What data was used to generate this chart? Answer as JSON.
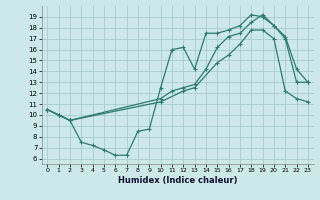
{
  "title": "",
  "xlabel": "Humidex (Indice chaleur)",
  "bg_color": "#cce8e8",
  "grid_color": "#aacccc",
  "line_color": "#2e7b6e",
  "ylim": [
    5.5,
    20.0
  ],
  "xlim": [
    -0.5,
    23.5
  ],
  "yticks": [
    6,
    7,
    8,
    9,
    10,
    11,
    12,
    13,
    14,
    15,
    16,
    17,
    18,
    19
  ],
  "xticks": [
    0,
    1,
    2,
    3,
    4,
    5,
    6,
    7,
    8,
    9,
    10,
    11,
    12,
    13,
    14,
    15,
    16,
    17,
    18,
    19,
    20,
    21,
    22,
    23
  ],
  "line1_x": [
    0,
    1,
    2,
    3,
    4,
    5,
    6,
    7,
    8,
    9,
    10,
    11,
    12,
    13,
    14,
    15,
    16,
    17,
    18,
    19,
    20,
    21,
    22,
    23
  ],
  "line1_y": [
    10.5,
    10.0,
    9.5,
    7.5,
    7.2,
    6.8,
    6.3,
    6.3,
    8.5,
    8.7,
    12.5,
    16.0,
    16.2,
    14.2,
    17.5,
    17.5,
    17.8,
    18.2,
    19.2,
    19.0,
    18.2,
    17.0,
    13.0,
    13.0
  ],
  "line2_x": [
    0,
    1,
    2,
    10,
    11,
    12,
    13,
    14,
    15,
    16,
    17,
    18,
    19,
    20,
    21,
    22,
    23
  ],
  "line2_y": [
    10.5,
    10.0,
    9.5,
    11.5,
    12.2,
    12.5,
    12.8,
    14.2,
    16.2,
    17.2,
    17.5,
    18.5,
    19.2,
    18.2,
    17.2,
    14.2,
    13.0
  ],
  "line3_x": [
    0,
    1,
    2,
    10,
    12,
    13,
    15,
    16,
    17,
    18,
    19,
    20,
    21,
    22,
    23
  ],
  "line3_y": [
    10.5,
    10.0,
    9.5,
    11.2,
    12.2,
    12.5,
    14.8,
    15.5,
    16.5,
    17.8,
    17.8,
    17.0,
    12.2,
    11.5,
    11.2
  ]
}
